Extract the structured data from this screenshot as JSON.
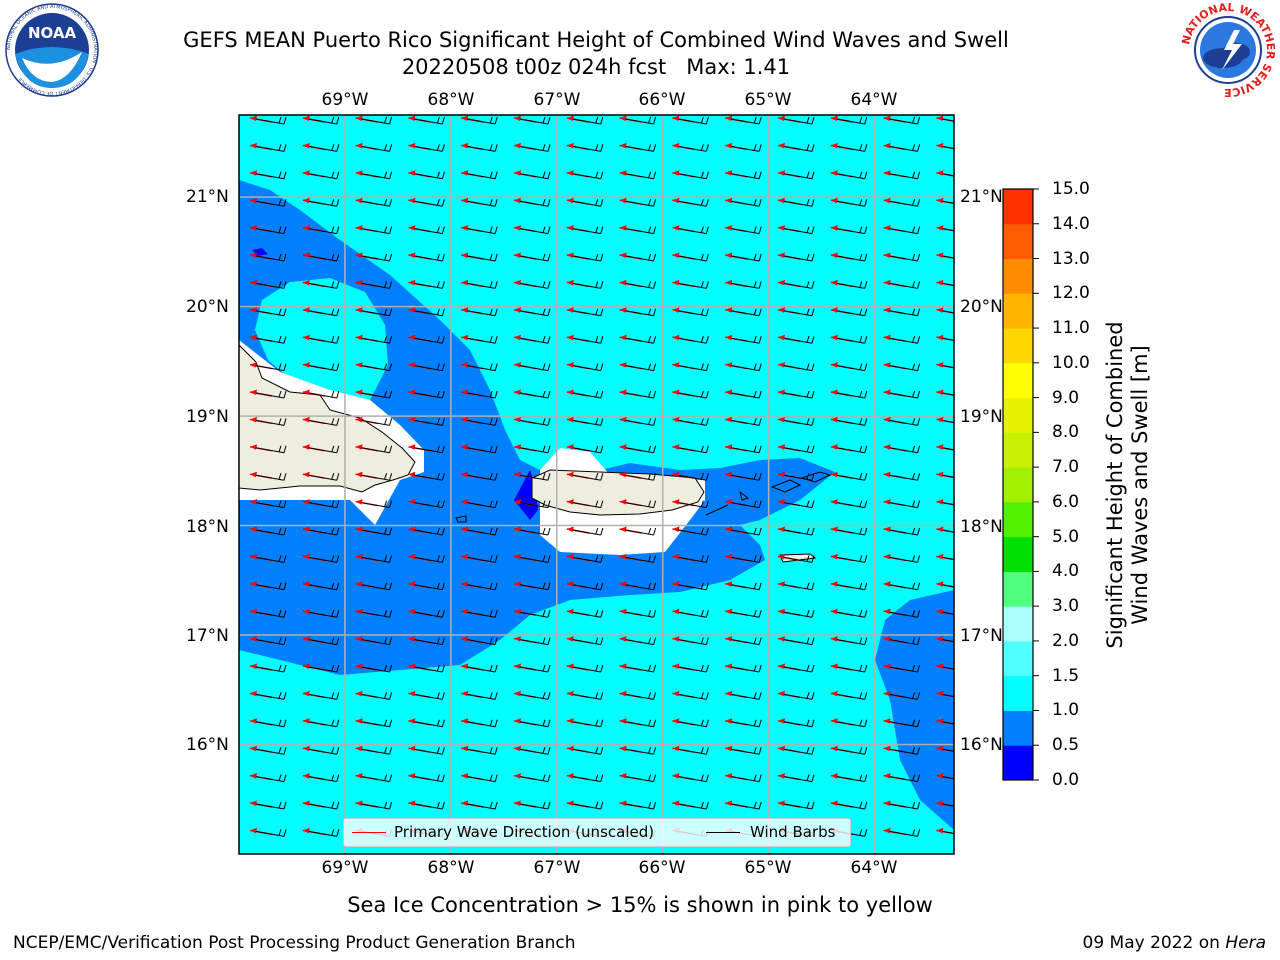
{
  "title": {
    "line1": "GEFS MEAN Puerto Rico Significant Height of Combined Wind Waves and Swell",
    "line2": "20220508 t00z 024h fcst   Max: 1.41"
  },
  "logos": {
    "left": {
      "icon": "noaa-logo",
      "text": "NOAA",
      "ring": "NATIONAL OCEANIC AND ATMOSPHERIC ADMINISTRATION · U.S. DEPARTMENT OF COMMERCE"
    },
    "right": {
      "icon": "nws-logo",
      "ring": "NATIONAL WEATHER SERVICE"
    }
  },
  "map": {
    "lon_labels": [
      "69°W",
      "68°W",
      "67°W",
      "66°W",
      "65°W",
      "64°W"
    ],
    "lat_labels": [
      "21°N",
      "20°N",
      "19°N",
      "18°N",
      "17°N",
      "16°N"
    ],
    "lon_values": [
      -69,
      -68,
      -67,
      -66,
      -65,
      -64
    ],
    "lat_values": [
      21,
      20,
      19,
      18,
      17,
      16
    ],
    "extent": {
      "lon_min": -70,
      "lon_max": -63.25,
      "lat_min": 15,
      "lat_max": 21.75
    },
    "colors": {
      "ocean_1_0_1_5": "#00ffff",
      "ocean_0_5_1_0": "#0080ff",
      "ocean_0_0_0_5": "#0000ff",
      "land": "#efedde",
      "wave_arrow": "#ff0000",
      "wind_barb": "#000000",
      "gridline": "#b0b0b0"
    }
  },
  "legend": {
    "wave_label": "Primary Wave Direction (unscaled)",
    "barb_label": "Wind Barbs"
  },
  "colorbar": {
    "title_line1": "Significant Height of Combined",
    "title_line2": "Wind Waves and Swell [m]",
    "ticks": [
      "0.0",
      "0.5",
      "1.0",
      "1.5",
      "2.0",
      "3.0",
      "4.0",
      "5.0",
      "6.0",
      "7.0",
      "8.0",
      "9.0",
      "10.0",
      "11.0",
      "12.0",
      "13.0",
      "14.0",
      "15.0"
    ],
    "colors": [
      "#0000ff",
      "#0080ff",
      "#00ffff",
      "#50ffff",
      "#aaffff",
      "#50ff80",
      "#00e000",
      "#50f000",
      "#a0f000",
      "#c8f000",
      "#e6f000",
      "#ffff00",
      "#ffd700",
      "#ffb400",
      "#ff8c00",
      "#ff5a00",
      "#ff3200",
      "#ff0000"
    ]
  },
  "footer": {
    "note": "Sea Ice Concentration > 15% is shown in pink to yellow",
    "left": "NCEP/EMC/Verification Post Processing Product Generation Branch",
    "date": "09 May 2022 on ",
    "machine": "Hera"
  }
}
